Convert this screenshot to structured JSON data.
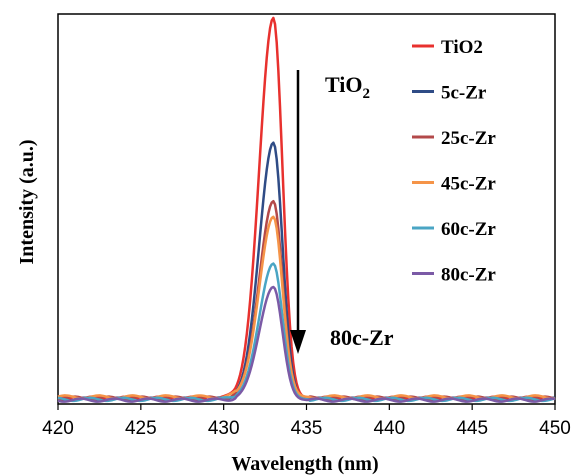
{
  "chart_data": {
    "type": "line",
    "title": "",
    "xlabel": "Wavelength (nm)",
    "ylabel": "Intensity (a.u.)",
    "xlim": [
      420,
      450
    ],
    "ylim": [
      0,
      1.0
    ],
    "xticks": [
      "420",
      "425",
      "430",
      "435",
      "440",
      "445",
      "450"
    ],
    "y_tick_labels": false,
    "grid": false,
    "legend_position": "top-right",
    "series": [
      {
        "name": "TiO2",
        "color": "#e8312e",
        "peak_x": 433,
        "peak_y": 0.99,
        "baseline": 0.015
      },
      {
        "name": "5c-Zr",
        "color": "#2f4c86",
        "peak_x": 433,
        "peak_y": 0.67,
        "baseline": 0.012
      },
      {
        "name": "25c-Zr",
        "color": "#b3494a",
        "peak_x": 433,
        "peak_y": 0.52,
        "baseline": 0.015
      },
      {
        "name": "45c-Zr",
        "color": "#f59448",
        "peak_x": 433,
        "peak_y": 0.48,
        "baseline": 0.018
      },
      {
        "name": "60c-Zr",
        "color": "#4aa5c4",
        "peak_x": 433,
        "peak_y": 0.36,
        "baseline": 0.012
      },
      {
        "name": "80c-Zr",
        "color": "#7b5aa6",
        "peak_x": 433,
        "peak_y": 0.3,
        "baseline": 0.01
      }
    ],
    "annotations": {
      "top_main": "TiO",
      "top_sub": "2",
      "bottom": "80c-Zr"
    }
  }
}
